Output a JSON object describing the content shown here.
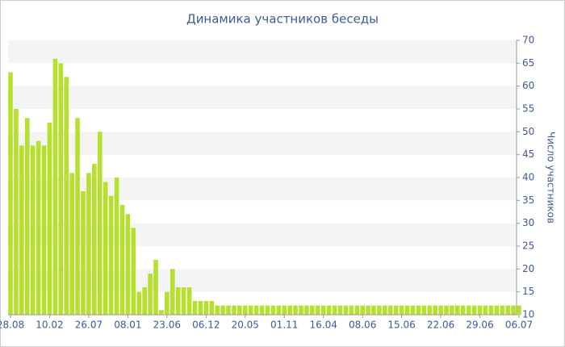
{
  "chart_data": {
    "type": "bar",
    "title": "Динамика участников беседы",
    "y_label": "Число участников",
    "categories": [
      "28.08",
      null,
      null,
      null,
      null,
      null,
      null,
      "10.02",
      null,
      null,
      null,
      null,
      null,
      null,
      "26.07",
      null,
      null,
      null,
      null,
      null,
      null,
      "08.01",
      null,
      null,
      null,
      null,
      null,
      null,
      "23.06",
      null,
      null,
      null,
      null,
      null,
      null,
      "06.12",
      null,
      null,
      null,
      null,
      null,
      null,
      "20.05",
      null,
      null,
      null,
      null,
      null,
      null,
      "01.11",
      null,
      null,
      null,
      null,
      null,
      null,
      "16.04",
      null,
      null,
      null,
      null,
      null,
      null,
      "08.06",
      null,
      null,
      null,
      null,
      null,
      null,
      "15.06",
      null,
      null,
      null,
      null,
      null,
      null,
      "22.06",
      null,
      null,
      null,
      null,
      null,
      null,
      "29.06",
      null,
      null,
      null,
      null,
      null,
      null,
      "06.07"
    ],
    "values": [
      63,
      55,
      47,
      53,
      47,
      48,
      47,
      52,
      66,
      65,
      62,
      41,
      53,
      37,
      41,
      43,
      50,
      39,
      36,
      40,
      34,
      32,
      29,
      15,
      16,
      19,
      22,
      11,
      15,
      20,
      16,
      16,
      16,
      13,
      13,
      13,
      13,
      12,
      12,
      12,
      12,
      12,
      12,
      12,
      12,
      12,
      12,
      12,
      12,
      12,
      12,
      12,
      12,
      12,
      12,
      12,
      12,
      12,
      12,
      12,
      12,
      12,
      12,
      12,
      12,
      12,
      12,
      12,
      12,
      12,
      12,
      12,
      12,
      12,
      12,
      12,
      12,
      12,
      12,
      12,
      12,
      12,
      12,
      12,
      12,
      12,
      12,
      12,
      12,
      12,
      12,
      12
    ],
    "color": "#b5e02e",
    "ylim": [
      10,
      70
    ],
    "yticks": [
      10,
      15,
      20,
      25,
      30,
      35,
      40,
      45,
      50,
      55,
      60,
      65,
      70
    ],
    "grid": "bands",
    "y_axis_side": "right"
  }
}
